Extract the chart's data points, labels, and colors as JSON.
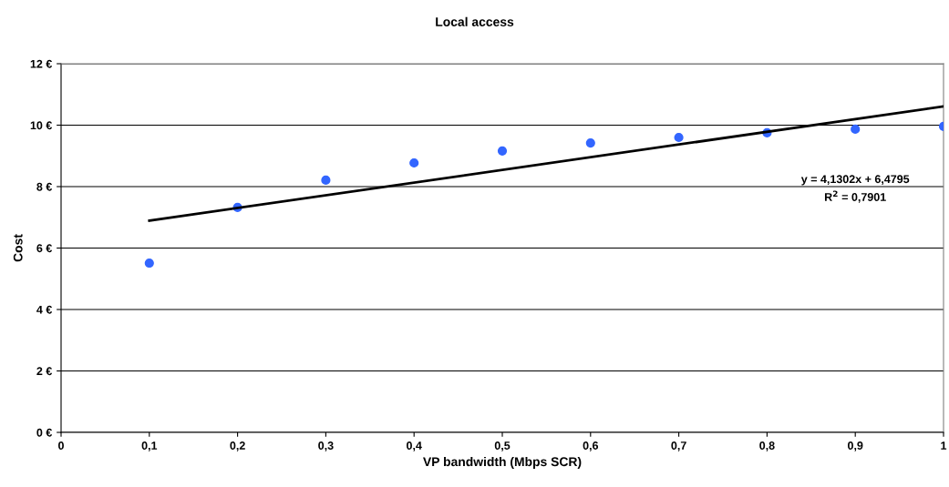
{
  "chart_data": {
    "type": "scatter",
    "title": "Local access",
    "xlabel": "VP bandwidth (Mbps SCR)",
    "ylabel": "Cost",
    "x": [
      0.1,
      0.2,
      0.3,
      0.4,
      0.5,
      0.6,
      0.7,
      0.8,
      0.9,
      1.0
    ],
    "series": [
      {
        "color": "#3366ff",
        "marker": "circle",
        "values": [
          5.51,
          7.32,
          8.21,
          8.77,
          9.16,
          9.42,
          9.6,
          9.75,
          9.87,
          9.96
        ]
      },
      {
        "type": "line",
        "color": "#000000",
        "marker": "none",
        "line_style": "solid",
        "x": [
          0.1,
          1.0
        ],
        "values": [
          6.89,
          10.61
        ]
      }
    ],
    "xlim": [
      0,
      1
    ],
    "ylim": [
      0,
      12
    ],
    "xticks": [
      0,
      {
        "value": 0.1,
        "label": "0,1"
      },
      {
        "value": 0.2,
        "label": "0,2"
      },
      {
        "value": 0.3,
        "label": "0,3"
      },
      {
        "value": 0.4,
        "label": "0,4"
      },
      {
        "value": 0.5,
        "label": "0,5"
      },
      {
        "value": 0.6,
        "label": "0,6"
      },
      {
        "value": 0.7,
        "label": "0,7"
      },
      {
        "value": 0.8,
        "label": "0,8"
      },
      {
        "value": 0.9,
        "label": "0,9"
      },
      1
    ],
    "yticks": [
      {
        "value": 0,
        "label": "0 €"
      },
      {
        "value": 2,
        "label": "2 €"
      },
      {
        "value": 4,
        "label": "4 €"
      },
      {
        "value": 6,
        "label": "6 €"
      },
      {
        "value": 8,
        "label": "8 €"
      },
      {
        "value": 10,
        "label": "10 €"
      },
      {
        "value": 12,
        "label": "12 €"
      }
    ],
    "grid": "y",
    "annotations": [
      "y = 4,1302x + 6,4795\nR$^{2}$ = 0,7901"
    ]
  }
}
